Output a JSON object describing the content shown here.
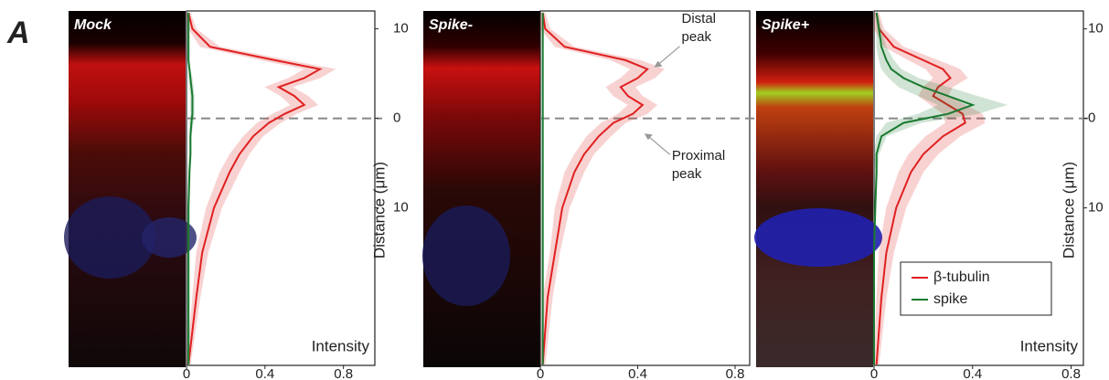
{
  "panel_label": "A",
  "chart_data": [
    {
      "type": "line",
      "title": "Mock",
      "xlabel": "Intensity",
      "ylabel": "Distance (μm)",
      "xlim": [
        0,
        0.96
      ],
      "xticks": [
        0,
        0.4,
        0.8
      ],
      "ylim": [
        -12,
        27.6
      ],
      "y_inverted": true,
      "yticks": [
        {
          "value": -10,
          "label": "10"
        },
        0,
        10
      ],
      "y": [
        -11.8,
        -10,
        -8,
        -6.5,
        -5.5,
        -4.5,
        -3.5,
        -2.5,
        -1.5,
        -0.5,
        0.5,
        2,
        4,
        6,
        10,
        15,
        20,
        27.5
      ],
      "series": [
        {
          "color": "#e02020",
          "values": [
            0.01,
            0.03,
            0.12,
            0.45,
            0.68,
            0.6,
            0.47,
            0.55,
            0.6,
            0.5,
            0.42,
            0.34,
            0.27,
            0.22,
            0.14,
            0.08,
            0.05,
            0.01
          ],
          "error": [
            0.01,
            0.02,
            0.05,
            0.07,
            0.08,
            0.08,
            0.07,
            0.07,
            0.07,
            0.06,
            0.06,
            0.05,
            0.05,
            0.05,
            0.04,
            0.03,
            0.02,
            0.01
          ]
        },
        {
          "color": "#1a7a30",
          "values": [
            0.01,
            0.01,
            0.01,
            0.01,
            0.015,
            0.02,
            0.025,
            0.03,
            0.03,
            0.03,
            0.025,
            0.02,
            0.02,
            0.015,
            0.01,
            0.01,
            0.01,
            0.01
          ],
          "error": [
            0.005,
            0.005,
            0.005,
            0.005,
            0.005,
            0.01,
            0.01,
            0.01,
            0.01,
            0.01,
            0.01,
            0.005,
            0.005,
            0.005,
            0.005,
            0.005,
            0.005,
            0.005
          ]
        }
      ]
    },
    {
      "type": "line",
      "title": "Spike-",
      "xlim": [
        0,
        0.86
      ],
      "xticks": [
        0,
        0.4,
        0.8
      ],
      "ylim": [
        -12,
        27.6
      ],
      "y_inverted": true,
      "y": [
        -11.8,
        -10,
        -8,
        -6.5,
        -5.5,
        -4.5,
        -3.5,
        -2.5,
        -1.5,
        -0.5,
        0.5,
        2,
        4,
        6,
        10,
        15,
        20,
        27.5
      ],
      "annotations": [
        {
          "text": "Distal peak",
          "x": 0.46,
          "y": -5.5
        },
        {
          "text": "Proximal peak",
          "x": 0.42,
          "y": 1.5
        }
      ],
      "series": [
        {
          "color": "#e02020",
          "values": [
            0.01,
            0.02,
            0.1,
            0.35,
            0.44,
            0.4,
            0.33,
            0.36,
            0.42,
            0.38,
            0.3,
            0.24,
            0.18,
            0.14,
            0.09,
            0.06,
            0.03,
            0.01
          ],
          "error": [
            0.01,
            0.02,
            0.04,
            0.06,
            0.07,
            0.07,
            0.06,
            0.06,
            0.06,
            0.06,
            0.05,
            0.05,
            0.04,
            0.04,
            0.03,
            0.02,
            0.02,
            0.01
          ]
        },
        {
          "color": "#1a7a30",
          "values": [
            0.01,
            0.01,
            0.01,
            0.01,
            0.01,
            0.01,
            0.01,
            0.01,
            0.01,
            0.01,
            0.01,
            0.01,
            0.01,
            0.01,
            0.01,
            0.01,
            0.01,
            0.01
          ],
          "error": [
            0.003,
            0.003,
            0.003,
            0.003,
            0.003,
            0.003,
            0.003,
            0.003,
            0.003,
            0.003,
            0.003,
            0.003,
            0.003,
            0.003,
            0.003,
            0.003,
            0.003,
            0.003
          ]
        }
      ]
    },
    {
      "type": "line",
      "title": "Spike+",
      "xlabel": "Intensity",
      "ylabel": "Distance (μm)",
      "xlim": [
        0,
        0.85
      ],
      "xticks": [
        0,
        0.4,
        0.8
      ],
      "ylim": [
        -12,
        27.6
      ],
      "y_inverted": true,
      "yticks": [
        {
          "value": -10,
          "label": "10"
        },
        0,
        10
      ],
      "legend": "lower right",
      "y": [
        -11.8,
        -10,
        -8,
        -6.5,
        -5.5,
        -4.5,
        -3.5,
        -2.5,
        -1.5,
        -0.5,
        0.5,
        2,
        4,
        6,
        10,
        15,
        20,
        27.5
      ],
      "series": [
        {
          "name": "β-tubulin",
          "color": "#e02020",
          "values": [
            0.01,
            0.02,
            0.08,
            0.2,
            0.28,
            0.31,
            0.26,
            0.24,
            0.3,
            0.36,
            0.37,
            0.28,
            0.2,
            0.15,
            0.09,
            0.05,
            0.03,
            0.01
          ],
          "error": [
            0.01,
            0.02,
            0.04,
            0.06,
            0.07,
            0.07,
            0.06,
            0.06,
            0.07,
            0.08,
            0.08,
            0.07,
            0.06,
            0.05,
            0.04,
            0.03,
            0.02,
            0.01
          ]
        },
        {
          "name": "spike",
          "color": "#1a7a30",
          "values": [
            0.01,
            0.02,
            0.03,
            0.05,
            0.07,
            0.12,
            0.2,
            0.3,
            0.4,
            0.3,
            0.12,
            0.03,
            0.01,
            0.01,
            0.005,
            0,
            0,
            0
          ],
          "error": [
            0.005,
            0.01,
            0.02,
            0.03,
            0.04,
            0.06,
            0.1,
            0.12,
            0.14,
            0.12,
            0.07,
            0.02,
            0.01,
            0.005,
            0.003,
            0.002,
            0.002,
            0.002
          ]
        }
      ]
    }
  ]
}
